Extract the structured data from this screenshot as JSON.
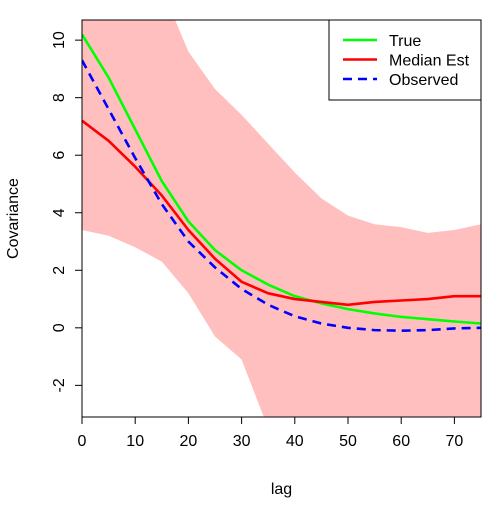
{
  "chart_data": {
    "type": "line",
    "xlabel": "lag",
    "ylabel": "Covariance",
    "xlim": [
      0,
      75
    ],
    "ylim": [
      -3.1,
      10.7
    ],
    "x_ticks": [
      "0",
      "10",
      "20",
      "30",
      "40",
      "50",
      "60",
      "70"
    ],
    "y_ticks": [
      "-2",
      "0",
      "2",
      "4",
      "6",
      "8",
      "10"
    ],
    "grid": false,
    "legend_position": "top-right",
    "band": {
      "color": "#ffbfbf",
      "x": [
        0,
        5,
        10,
        15,
        20,
        25,
        30,
        35,
        40,
        45,
        50,
        55,
        60,
        65,
        70,
        75
      ],
      "upper": [
        12.0,
        12.5,
        12.8,
        11.8,
        9.6,
        8.3,
        7.4,
        6.4,
        5.4,
        4.5,
        3.9,
        3.6,
        3.5,
        3.3,
        3.4,
        3.6
      ],
      "lower": [
        3.4,
        3.2,
        2.8,
        2.3,
        1.2,
        -0.3,
        -1.1,
        -3.5,
        -3.5,
        -3.5,
        -3.5,
        -3.5,
        -3.5,
        -3.5,
        -3.5,
        -3.5
      ]
    },
    "series": [
      {
        "name": "True",
        "color": "#00ff00",
        "dash": "solid",
        "x": [
          0,
          5,
          10,
          15,
          20,
          25,
          30,
          35,
          40,
          45,
          50,
          55,
          60,
          65,
          70,
          75
        ],
        "values": [
          10.2,
          8.7,
          6.9,
          5.1,
          3.7,
          2.7,
          2.0,
          1.5,
          1.1,
          0.85,
          0.65,
          0.5,
          0.38,
          0.3,
          0.22,
          0.15
        ]
      },
      {
        "name": "Median Est",
        "color": "#ff0000",
        "dash": "solid",
        "x": [
          0,
          5,
          10,
          15,
          20,
          25,
          30,
          35,
          40,
          45,
          50,
          55,
          60,
          65,
          70,
          75
        ],
        "values": [
          7.2,
          6.5,
          5.6,
          4.6,
          3.4,
          2.4,
          1.6,
          1.2,
          1.0,
          0.9,
          0.8,
          0.9,
          0.95,
          1.0,
          1.1,
          1.1
        ]
      },
      {
        "name": "Observed",
        "color": "#0000ff",
        "dash": "dashed",
        "x": [
          0,
          5,
          10,
          15,
          20,
          25,
          30,
          35,
          40,
          45,
          50,
          55,
          60,
          65,
          70,
          75
        ],
        "values": [
          9.3,
          7.6,
          5.9,
          4.3,
          3.0,
          2.1,
          1.35,
          0.8,
          0.4,
          0.15,
          0.0,
          -0.08,
          -0.1,
          -0.08,
          -0.02,
          0.0
        ]
      }
    ]
  }
}
